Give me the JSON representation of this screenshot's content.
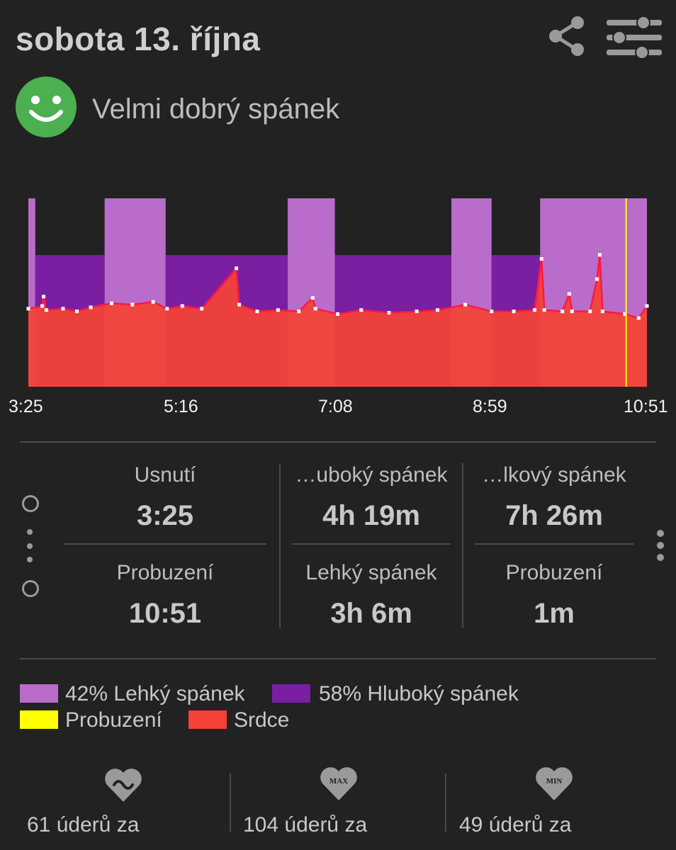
{
  "header": {
    "title": "sobota 13. října",
    "quality_label": "Velmi dobrý spánek"
  },
  "colors": {
    "light_sleep": "#b96cc9",
    "deep_sleep": "#7a1fa2",
    "awake": "#ffff00",
    "heart": "#f44336",
    "quality_face": "#4caf50"
  },
  "chart_data": {
    "type": "area",
    "x_ticks": [
      "3:25",
      "5:16",
      "7:08",
      "8:59",
      "10:51"
    ],
    "stages": [
      {
        "start": "3:25",
        "end": "3:30",
        "stage": "light"
      },
      {
        "start": "3:30",
        "end": "4:20",
        "stage": "deep"
      },
      {
        "start": "4:20",
        "end": "5:04",
        "stage": "light"
      },
      {
        "start": "5:04",
        "end": "6:32",
        "stage": "deep"
      },
      {
        "start": "6:32",
        "end": "7:06",
        "stage": "light"
      },
      {
        "start": "7:06",
        "end": "8:30",
        "stage": "deep"
      },
      {
        "start": "8:30",
        "end": "8:59",
        "stage": "light"
      },
      {
        "start": "8:59",
        "end": "9:34",
        "stage": "deep"
      },
      {
        "start": "9:34",
        "end": "10:51",
        "stage": "light"
      }
    ],
    "awake_at": "10:36",
    "heart_rate": {
      "ylim": [
        0,
        140
      ],
      "series": [
        {
          "t": "3:25",
          "bpm": 58
        },
        {
          "t": "3:35",
          "bpm": 60
        },
        {
          "t": "3:36",
          "bpm": 67
        },
        {
          "t": "3:38",
          "bpm": 57
        },
        {
          "t": "3:50",
          "bpm": 58
        },
        {
          "t": "4:00",
          "bpm": 56
        },
        {
          "t": "4:10",
          "bpm": 59
        },
        {
          "t": "4:25",
          "bpm": 62
        },
        {
          "t": "4:40",
          "bpm": 61
        },
        {
          "t": "4:55",
          "bpm": 63
        },
        {
          "t": "5:05",
          "bpm": 58
        },
        {
          "t": "5:16",
          "bpm": 60
        },
        {
          "t": "5:30",
          "bpm": 58
        },
        {
          "t": "5:55",
          "bpm": 88
        },
        {
          "t": "5:57",
          "bpm": 61
        },
        {
          "t": "6:10",
          "bpm": 56
        },
        {
          "t": "6:25",
          "bpm": 57
        },
        {
          "t": "6:40",
          "bpm": 56
        },
        {
          "t": "6:50",
          "bpm": 66
        },
        {
          "t": "6:52",
          "bpm": 58
        },
        {
          "t": "7:08",
          "bpm": 54
        },
        {
          "t": "7:25",
          "bpm": 57
        },
        {
          "t": "7:45",
          "bpm": 55
        },
        {
          "t": "8:05",
          "bpm": 56
        },
        {
          "t": "8:20",
          "bpm": 57
        },
        {
          "t": "8:40",
          "bpm": 61
        },
        {
          "t": "8:59",
          "bpm": 56
        },
        {
          "t": "9:15",
          "bpm": 56
        },
        {
          "t": "9:30",
          "bpm": 57
        },
        {
          "t": "9:35",
          "bpm": 95
        },
        {
          "t": "9:37",
          "bpm": 57
        },
        {
          "t": "9:50",
          "bpm": 56
        },
        {
          "t": "9:55",
          "bpm": 69
        },
        {
          "t": "9:57",
          "bpm": 56
        },
        {
          "t": "10:10",
          "bpm": 56
        },
        {
          "t": "10:15",
          "bpm": 80
        },
        {
          "t": "10:17",
          "bpm": 98
        },
        {
          "t": "10:19",
          "bpm": 56
        },
        {
          "t": "10:35",
          "bpm": 54
        },
        {
          "t": "10:45",
          "bpm": 51
        },
        {
          "t": "10:51",
          "bpm": 60
        }
      ]
    }
  },
  "stats": {
    "fall_asleep_label": "Usnutí",
    "fall_asleep_value": "3:25",
    "wake_label": "Probuzení",
    "wake_value": "10:51",
    "deep_label": "…uboký spánek",
    "deep_value": "4h 19m",
    "light_label": "Lehký spánek",
    "light_value": "3h 6m",
    "total_label": "…lkový spánek",
    "total_value": "7h 26m",
    "awake_label": "Probuzení",
    "awake_value": "1m"
  },
  "legend": {
    "light": "42% Lehký spánek",
    "deep": "58% Hluboký spánek",
    "awake": "Probuzení",
    "heart": "Srdce"
  },
  "heart_rate": {
    "avg_text": "61 úderů za",
    "max_badge": "MAX",
    "max_text": "104 úderů za",
    "min_badge": "MIN",
    "min_text": "49 úderů za"
  },
  "icons": {
    "share": "share-icon",
    "settings": "sliders-icon",
    "quality": "smiley-face-icon",
    "more": "vertical-dots-icon",
    "avg": "heart-wave-icon",
    "max": "heart-max-icon",
    "min": "heart-min-icon"
  }
}
